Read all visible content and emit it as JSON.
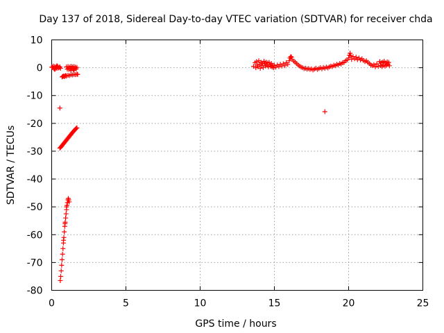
{
  "chart_data": {
    "type": "scatter",
    "title": "Day 137 of 2018, Sidereal Day-to-day VTEC variation (SDTVAR) for receiver chda",
    "xlabel": "GPS time / hours",
    "ylabel": "SDTVAR / TECUs",
    "xlim": [
      0,
      25
    ],
    "ylim": [
      -80,
      10
    ],
    "xticks": [
      0,
      5,
      10,
      15,
      20,
      25
    ],
    "xtick_labels": [
      "0",
      "5",
      "10",
      "15",
      "20",
      "25"
    ],
    "yticks": [
      10,
      0,
      -10,
      -20,
      -30,
      -40,
      -50,
      -60,
      -70,
      -80
    ],
    "ytick_labels": [
      "10",
      "0",
      "-10",
      "-20",
      "-30",
      "-40",
      "-50",
      "-60",
      "-70",
      "-80"
    ],
    "grid": true,
    "marker": "+",
    "color": "#ff0000",
    "series": [
      {
        "points": [
          [
            0.0,
            0.2
          ],
          [
            0.05,
            0.1
          ],
          [
            0.1,
            0.6
          ],
          [
            0.15,
            -0.3
          ],
          [
            0.2,
            0.4
          ],
          [
            0.25,
            -0.4
          ],
          [
            0.3,
            0.3
          ],
          [
            0.35,
            -0.2
          ],
          [
            0.4,
            0.5
          ],
          [
            0.45,
            -0.1
          ],
          [
            0.5,
            0.1
          ],
          [
            0.55,
            0.3
          ],
          [
            0.6,
            -0.2
          ],
          [
            0.2,
            -0.6
          ],
          [
            0.35,
            0.7
          ],
          [
            1.0,
            0.3
          ],
          [
            1.05,
            -0.5
          ],
          [
            1.1,
            0.4
          ],
          [
            1.15,
            -0.6
          ],
          [
            1.2,
            0.2
          ],
          [
            1.25,
            -0.4
          ],
          [
            1.3,
            0.5
          ],
          [
            1.35,
            -0.2
          ],
          [
            1.4,
            0.3
          ],
          [
            1.45,
            -0.6
          ],
          [
            1.5,
            0.4
          ],
          [
            1.55,
            -0.3
          ],
          [
            1.6,
            0.2
          ],
          [
            1.65,
            -0.4
          ],
          [
            1.7,
            0.1
          ],
          [
            1.3,
            -1.0
          ],
          [
            1.5,
            -0.9
          ],
          [
            0.7,
            -3.3
          ],
          [
            0.75,
            -3.1
          ],
          [
            0.8,
            -3.0
          ],
          [
            0.85,
            -3.2
          ],
          [
            0.9,
            -2.9
          ],
          [
            0.95,
            -2.8
          ],
          [
            1.0,
            -3.0
          ],
          [
            1.1,
            -2.7
          ],
          [
            1.2,
            -2.8
          ],
          [
            1.3,
            -2.5
          ],
          [
            1.4,
            -2.6
          ],
          [
            1.5,
            -2.4
          ],
          [
            1.6,
            -2.5
          ],
          [
            1.7,
            -2.3
          ],
          [
            1.75,
            -2.4
          ],
          [
            0.55,
            -14.5
          ],
          [
            0.55,
            -28.9
          ],
          [
            0.6,
            -28.6
          ],
          [
            0.65,
            -28.3
          ],
          [
            0.7,
            -28.0
          ],
          [
            0.75,
            -27.6
          ],
          [
            0.8,
            -27.3
          ],
          [
            0.85,
            -27.0
          ],
          [
            0.9,
            -26.6
          ],
          [
            0.95,
            -26.3
          ],
          [
            1.0,
            -26.0
          ],
          [
            1.05,
            -25.6
          ],
          [
            1.1,
            -25.3
          ],
          [
            1.15,
            -25.0
          ],
          [
            1.2,
            -24.6
          ],
          [
            1.25,
            -24.3
          ],
          [
            1.3,
            -24.0
          ],
          [
            1.35,
            -23.6
          ],
          [
            1.4,
            -23.3
          ],
          [
            1.45,
            -23.0
          ],
          [
            1.5,
            -22.7
          ],
          [
            1.55,
            -22.4
          ],
          [
            1.6,
            -22.1
          ],
          [
            1.65,
            -21.8
          ],
          [
            1.7,
            -21.6
          ],
          [
            0.58,
            -76.5
          ],
          [
            0.61,
            -75.0
          ],
          [
            0.64,
            -73.0
          ],
          [
            0.67,
            -71.0
          ],
          [
            0.7,
            -69.0
          ],
          [
            0.73,
            -67.0
          ],
          [
            0.76,
            -65.0
          ],
          [
            0.79,
            -63.0
          ],
          [
            0.82,
            -61.0
          ],
          [
            0.85,
            -59.0
          ],
          [
            0.88,
            -57.0
          ],
          [
            0.91,
            -55.5
          ],
          [
            0.94,
            -54.0
          ],
          [
            0.97,
            -52.5
          ],
          [
            1.0,
            -51.0
          ],
          [
            1.03,
            -49.5
          ],
          [
            1.06,
            -48.5
          ],
          [
            1.09,
            -47.5
          ],
          [
            1.12,
            -47.0
          ],
          [
            1.15,
            -47.5
          ],
          [
            1.18,
            -48.2
          ],
          [
            1.0,
            -50.0
          ],
          [
            0.9,
            -56.0
          ],
          [
            0.8,
            -62.0
          ],
          [
            13.6,
            0.5
          ],
          [
            13.7,
            1.8
          ],
          [
            13.75,
            0.0
          ],
          [
            13.8,
            2.2
          ],
          [
            13.85,
            1.0
          ],
          [
            13.9,
            0.3
          ],
          [
            13.95,
            2.5
          ],
          [
            14.0,
            1.2
          ],
          [
            14.05,
            -0.2
          ],
          [
            14.1,
            2.0
          ],
          [
            14.15,
            0.8
          ],
          [
            14.2,
            1.6
          ],
          [
            14.25,
            0.1
          ],
          [
            14.3,
            2.3
          ],
          [
            14.35,
            1.4
          ],
          [
            14.4,
            0.6
          ],
          [
            14.45,
            2.0
          ],
          [
            14.5,
            0.9
          ],
          [
            14.55,
            1.7
          ],
          [
            14.6,
            0.3
          ],
          [
            14.65,
            1.9
          ],
          [
            14.7,
            1.1
          ],
          [
            14.75,
            0.5
          ],
          [
            14.8,
            1.5
          ],
          [
            14.85,
            0.2
          ],
          [
            14.9,
            0.9
          ],
          [
            14.95,
            0.0
          ],
          [
            15.0,
            0.8
          ],
          [
            15.1,
            0.2
          ],
          [
            15.2,
            1.0
          ],
          [
            15.3,
            0.4
          ],
          [
            15.4,
            1.2
          ],
          [
            15.5,
            0.6
          ],
          [
            15.6,
            1.4
          ],
          [
            15.7,
            0.7
          ],
          [
            15.8,
            1.8
          ],
          [
            15.9,
            1.2
          ],
          [
            16.0,
            2.5
          ],
          [
            16.05,
            3.5
          ],
          [
            16.1,
            4.0
          ],
          [
            16.15,
            3.8
          ],
          [
            16.2,
            3.0
          ],
          [
            16.3,
            2.4
          ],
          [
            16.4,
            2.0
          ],
          [
            16.5,
            1.5
          ],
          [
            16.6,
            1.0
          ],
          [
            16.7,
            0.6
          ],
          [
            16.8,
            0.2
          ],
          [
            16.9,
            0.0
          ],
          [
            17.0,
            -0.3
          ],
          [
            17.1,
            -0.2
          ],
          [
            17.2,
            -0.5
          ],
          [
            17.3,
            -0.3
          ],
          [
            17.4,
            -0.6
          ],
          [
            17.5,
            -0.4
          ],
          [
            17.6,
            -0.8
          ],
          [
            17.7,
            -0.5
          ],
          [
            17.8,
            -0.2
          ],
          [
            17.9,
            -0.6
          ],
          [
            18.0,
            -0.3
          ],
          [
            18.1,
            0.0
          ],
          [
            18.2,
            -0.4
          ],
          [
            18.3,
            0.1
          ],
          [
            18.4,
            -0.2
          ],
          [
            18.5,
            0.2
          ],
          [
            18.6,
            -0.1
          ],
          [
            18.7,
            0.3
          ],
          [
            18.8,
            0.6
          ],
          [
            18.9,
            0.4
          ],
          [
            19.0,
            0.9
          ],
          [
            19.1,
            0.7
          ],
          [
            19.2,
            1.2
          ],
          [
            19.3,
            1.0
          ],
          [
            19.4,
            1.5
          ],
          [
            19.5,
            1.3
          ],
          [
            19.6,
            1.8
          ],
          [
            19.7,
            2.0
          ],
          [
            19.8,
            2.5
          ],
          [
            19.9,
            2.8
          ],
          [
            20.0,
            3.5
          ],
          [
            20.05,
            4.5
          ],
          [
            20.1,
            5.2
          ],
          [
            20.15,
            4.2
          ],
          [
            20.2,
            3.0
          ],
          [
            20.3,
            4.0
          ],
          [
            20.4,
            3.2
          ],
          [
            20.5,
            3.8
          ],
          [
            20.6,
            2.9
          ],
          [
            20.7,
            3.5
          ],
          [
            20.8,
            2.8
          ],
          [
            20.9,
            3.2
          ],
          [
            21.0,
            2.6
          ],
          [
            21.1,
            2.2
          ],
          [
            21.2,
            2.5
          ],
          [
            21.3,
            1.9
          ],
          [
            21.4,
            1.5
          ],
          [
            21.5,
            1.0
          ],
          [
            21.6,
            0.7
          ],
          [
            21.7,
            1.1
          ],
          [
            21.8,
            0.3
          ],
          [
            21.9,
            1.4
          ],
          [
            22.0,
            0.5
          ],
          [
            22.1,
            2.2
          ],
          [
            22.15,
            0.8
          ],
          [
            22.2,
            1.8
          ],
          [
            22.25,
            0.4
          ],
          [
            22.3,
            2.0
          ],
          [
            22.35,
            1.0
          ],
          [
            22.4,
            2.3
          ],
          [
            22.45,
            0.6
          ],
          [
            22.5,
            1.7
          ],
          [
            22.55,
            0.9
          ],
          [
            22.6,
            2.1
          ],
          [
            22.65,
            1.2
          ],
          [
            22.7,
            1.9
          ],
          [
            22.75,
            0.7
          ],
          [
            18.4,
            -15.8
          ]
        ]
      }
    ]
  }
}
